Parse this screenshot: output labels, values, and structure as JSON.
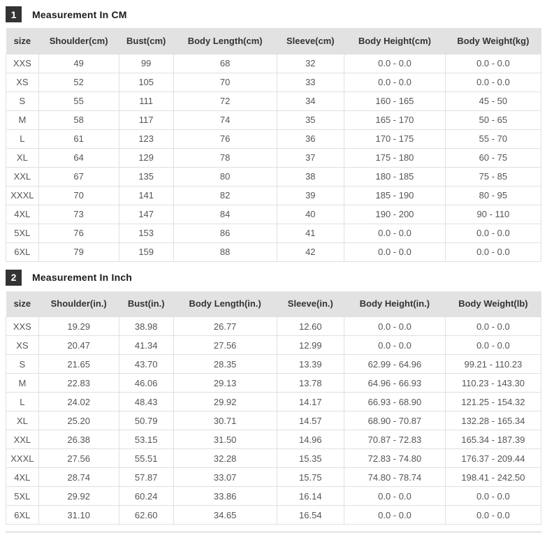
{
  "colors": {
    "badge-bg": "#333333",
    "badge-text": "#ffffff",
    "header-bg": "#e2e2e2",
    "header-text": "#333333",
    "cell-text": "#555555",
    "border-color": "#e0e0e0",
    "title-text": "#1a1a1a",
    "page-bg": "#ffffff"
  },
  "chart_data": [
    {
      "type": "table",
      "badge": "1",
      "title": "Measurement In CM",
      "columns": [
        "size",
        "Shoulder(cm)",
        "Bust(cm)",
        "Body Length(cm)",
        "Sleeve(cm)",
        "Body Height(cm)",
        "Body Weight(kg)"
      ],
      "rows": [
        [
          "XXS",
          "49",
          "99",
          "68",
          "32",
          "0.0 - 0.0",
          "0.0 - 0.0"
        ],
        [
          "XS",
          "52",
          "105",
          "70",
          "33",
          "0.0 - 0.0",
          "0.0 - 0.0"
        ],
        [
          "S",
          "55",
          "111",
          "72",
          "34",
          "160 - 165",
          "45 - 50"
        ],
        [
          "M",
          "58",
          "117",
          "74",
          "35",
          "165 - 170",
          "50 - 65"
        ],
        [
          "L",
          "61",
          "123",
          "76",
          "36",
          "170 - 175",
          "55 - 70"
        ],
        [
          "XL",
          "64",
          "129",
          "78",
          "37",
          "175 - 180",
          "60 - 75"
        ],
        [
          "XXL",
          "67",
          "135",
          "80",
          "38",
          "180 - 185",
          "75 - 85"
        ],
        [
          "XXXL",
          "70",
          "141",
          "82",
          "39",
          "185 - 190",
          "80 - 95"
        ],
        [
          "4XL",
          "73",
          "147",
          "84",
          "40",
          "190 - 200",
          "90 - 110"
        ],
        [
          "5XL",
          "76",
          "153",
          "86",
          "41",
          "0.0 - 0.0",
          "0.0 - 0.0"
        ],
        [
          "6XL",
          "79",
          "159",
          "88",
          "42",
          "0.0 - 0.0",
          "0.0 - 0.0"
        ]
      ]
    },
    {
      "type": "table",
      "badge": "2",
      "title": "Measurement In Inch",
      "columns": [
        "size",
        "Shoulder(in.)",
        "Bust(in.)",
        "Body Length(in.)",
        "Sleeve(in.)",
        "Body Height(in.)",
        "Body Weight(lb)"
      ],
      "rows": [
        [
          "XXS",
          "19.29",
          "38.98",
          "26.77",
          "12.60",
          "0.0 - 0.0",
          "0.0 - 0.0"
        ],
        [
          "XS",
          "20.47",
          "41.34",
          "27.56",
          "12.99",
          "0.0 - 0.0",
          "0.0 - 0.0"
        ],
        [
          "S",
          "21.65",
          "43.70",
          "28.35",
          "13.39",
          "62.99 - 64.96",
          "99.21 - 110.23"
        ],
        [
          "M",
          "22.83",
          "46.06",
          "29.13",
          "13.78",
          "64.96 - 66.93",
          "110.23 - 143.30"
        ],
        [
          "L",
          "24.02",
          "48.43",
          "29.92",
          "14.17",
          "66.93 - 68.90",
          "121.25 - 154.32"
        ],
        [
          "XL",
          "25.20",
          "50.79",
          "30.71",
          "14.57",
          "68.90 - 70.87",
          "132.28 - 165.34"
        ],
        [
          "XXL",
          "26.38",
          "53.15",
          "31.50",
          "14.96",
          "70.87 - 72.83",
          "165.34 - 187.39"
        ],
        [
          "XXXL",
          "27.56",
          "55.51",
          "32.28",
          "15.35",
          "72.83 - 74.80",
          "176.37 - 209.44"
        ],
        [
          "4XL",
          "28.74",
          "57.87",
          "33.07",
          "15.75",
          "74.80 - 78.74",
          "198.41 - 242.50"
        ],
        [
          "5XL",
          "29.92",
          "60.24",
          "33.86",
          "16.14",
          "0.0 - 0.0",
          "0.0 - 0.0"
        ],
        [
          "6XL",
          "31.10",
          "62.60",
          "34.65",
          "16.54",
          "0.0 - 0.0",
          "0.0 - 0.0"
        ]
      ]
    }
  ]
}
